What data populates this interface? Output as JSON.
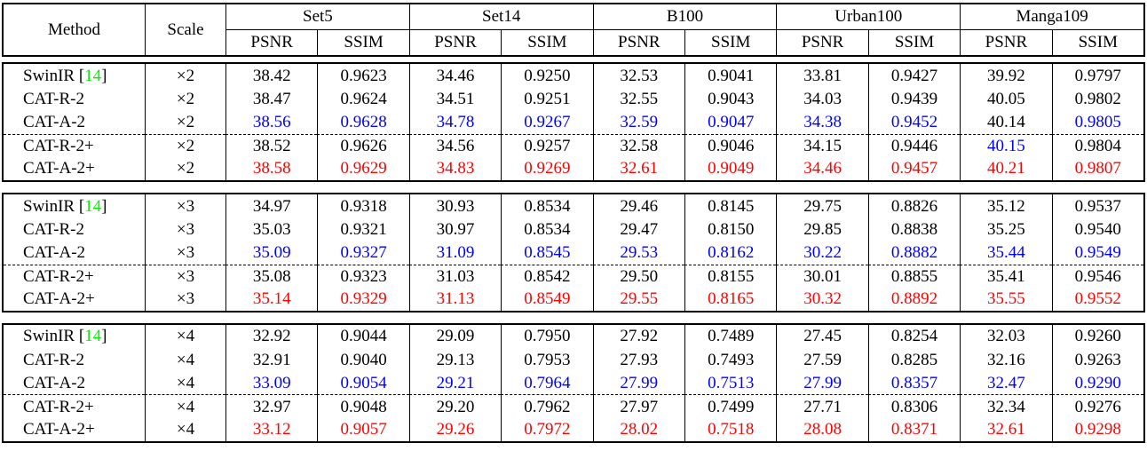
{
  "page": {
    "background": "#ffffff"
  },
  "header": {
    "method_label": "Method",
    "scale_label": "Scale",
    "datasets": [
      "Set5",
      "Set14",
      "B100",
      "Urban100",
      "Manga109"
    ],
    "metric_labels": [
      "PSNR",
      "SSIM"
    ]
  },
  "colors": {
    "text_black": "#000000",
    "second_best_blue": "#0000ff",
    "best_red": "#ff0000",
    "citation_green": "#00f000",
    "border": "#000000"
  },
  "groups": [
    {
      "scale": "×2",
      "rows": [
        {
          "method": "SwinIR",
          "citation": "14",
          "dashed_top": false,
          "values": [
            "38.42",
            "0.9623",
            "34.46",
            "0.9250",
            "32.53",
            "0.9041",
            "33.81",
            "0.9427",
            "39.92",
            "0.9797"
          ],
          "value_colors": [
            "k",
            "k",
            "k",
            "k",
            "k",
            "k",
            "k",
            "k",
            "k",
            "k"
          ]
        },
        {
          "method": "CAT-R-2",
          "citation": "",
          "dashed_top": false,
          "values": [
            "38.47",
            "0.9624",
            "34.51",
            "0.9251",
            "32.55",
            "0.9043",
            "34.03",
            "0.9439",
            "40.05",
            "0.9802"
          ],
          "value_colors": [
            "k",
            "k",
            "k",
            "k",
            "k",
            "k",
            "k",
            "k",
            "k",
            "k"
          ]
        },
        {
          "method": "CAT-A-2",
          "citation": "",
          "dashed_top": false,
          "values": [
            "38.56",
            "0.9628",
            "34.78",
            "0.9267",
            "32.59",
            "0.9047",
            "34.38",
            "0.9452",
            "40.14",
            "0.9805"
          ],
          "value_colors": [
            "b",
            "b",
            "b",
            "b",
            "b",
            "b",
            "b",
            "b",
            "k",
            "b"
          ]
        },
        {
          "method": "CAT-R-2+",
          "citation": "",
          "dashed_top": true,
          "values": [
            "38.52",
            "0.9626",
            "34.56",
            "0.9257",
            "32.58",
            "0.9046",
            "34.15",
            "0.9446",
            "40.15",
            "0.9804"
          ],
          "value_colors": [
            "k",
            "k",
            "k",
            "k",
            "k",
            "k",
            "k",
            "k",
            "b",
            "k"
          ]
        },
        {
          "method": "CAT-A-2+",
          "citation": "",
          "dashed_top": false,
          "values": [
            "38.58",
            "0.9629",
            "34.83",
            "0.9269",
            "32.61",
            "0.9049",
            "34.46",
            "0.9457",
            "40.21",
            "0.9807"
          ],
          "value_colors": [
            "r",
            "r",
            "r",
            "r",
            "r",
            "r",
            "r",
            "r",
            "r",
            "r"
          ]
        }
      ]
    },
    {
      "scale": "×3",
      "rows": [
        {
          "method": "SwinIR",
          "citation": "14",
          "dashed_top": false,
          "values": [
            "34.97",
            "0.9318",
            "30.93",
            "0.8534",
            "29.46",
            "0.8145",
            "29.75",
            "0.8826",
            "35.12",
            "0.9537"
          ],
          "value_colors": [
            "k",
            "k",
            "k",
            "k",
            "k",
            "k",
            "k",
            "k",
            "k",
            "k"
          ]
        },
        {
          "method": "CAT-R-2",
          "citation": "",
          "dashed_top": false,
          "values": [
            "35.03",
            "0.9321",
            "30.97",
            "0.8534",
            "29.47",
            "0.8150",
            "29.85",
            "0.8838",
            "35.25",
            "0.9540"
          ],
          "value_colors": [
            "k",
            "k",
            "k",
            "k",
            "k",
            "k",
            "k",
            "k",
            "k",
            "k"
          ]
        },
        {
          "method": "CAT-A-2",
          "citation": "",
          "dashed_top": false,
          "values": [
            "35.09",
            "0.9327",
            "31.09",
            "0.8545",
            "29.53",
            "0.8162",
            "30.22",
            "0.8882",
            "35.44",
            "0.9549"
          ],
          "value_colors": [
            "b",
            "b",
            "b",
            "b",
            "b",
            "b",
            "b",
            "b",
            "b",
            "b"
          ]
        },
        {
          "method": "CAT-R-2+",
          "citation": "",
          "dashed_top": true,
          "values": [
            "35.08",
            "0.9323",
            "31.03",
            "0.8542",
            "29.50",
            "0.8155",
            "30.01",
            "0.8855",
            "35.41",
            "0.9546"
          ],
          "value_colors": [
            "k",
            "k",
            "k",
            "k",
            "k",
            "k",
            "k",
            "k",
            "k",
            "k"
          ]
        },
        {
          "method": "CAT-A-2+",
          "citation": "",
          "dashed_top": false,
          "values": [
            "35.14",
            "0.9329",
            "31.13",
            "0.8549",
            "29.55",
            "0.8165",
            "30.32",
            "0.8892",
            "35.55",
            "0.9552"
          ],
          "value_colors": [
            "r",
            "r",
            "r",
            "r",
            "r",
            "r",
            "r",
            "r",
            "r",
            "r"
          ]
        }
      ]
    },
    {
      "scale": "×4",
      "rows": [
        {
          "method": "SwinIR",
          "citation": "14",
          "dashed_top": false,
          "values": [
            "32.92",
            "0.9044",
            "29.09",
            "0.7950",
            "27.92",
            "0.7489",
            "27.45",
            "0.8254",
            "32.03",
            "0.9260"
          ],
          "value_colors": [
            "k",
            "k",
            "k",
            "k",
            "k",
            "k",
            "k",
            "k",
            "k",
            "k"
          ]
        },
        {
          "method": "CAT-R-2",
          "citation": "",
          "dashed_top": false,
          "values": [
            "32.91",
            "0.9040",
            "29.13",
            "0.7953",
            "27.93",
            "0.7493",
            "27.59",
            "0.8285",
            "32.16",
            "0.9263"
          ],
          "value_colors": [
            "k",
            "k",
            "k",
            "k",
            "k",
            "k",
            "k",
            "k",
            "k",
            "k"
          ]
        },
        {
          "method": "CAT-A-2",
          "citation": "",
          "dashed_top": false,
          "values": [
            "33.09",
            "0.9054",
            "29.21",
            "0.7964",
            "27.99",
            "0.7513",
            "27.99",
            "0.8357",
            "32.47",
            "0.9290"
          ],
          "value_colors": [
            "b",
            "b",
            "b",
            "b",
            "b",
            "b",
            "b",
            "b",
            "b",
            "b"
          ]
        },
        {
          "method": "CAT-R-2+",
          "citation": "",
          "dashed_top": true,
          "values": [
            "32.97",
            "0.9048",
            "29.20",
            "0.7962",
            "27.97",
            "0.7499",
            "27.71",
            "0.8306",
            "32.34",
            "0.9276"
          ],
          "value_colors": [
            "k",
            "k",
            "k",
            "k",
            "k",
            "k",
            "k",
            "k",
            "k",
            "k"
          ]
        },
        {
          "method": "CAT-A-2+",
          "citation": "",
          "dashed_top": false,
          "values": [
            "33.12",
            "0.9057",
            "29.26",
            "0.7972",
            "28.02",
            "0.7518",
            "28.08",
            "0.8371",
            "32.61",
            "0.9298"
          ],
          "value_colors": [
            "r",
            "r",
            "r",
            "r",
            "r",
            "r",
            "r",
            "r",
            "r",
            "r"
          ]
        }
      ]
    }
  ]
}
